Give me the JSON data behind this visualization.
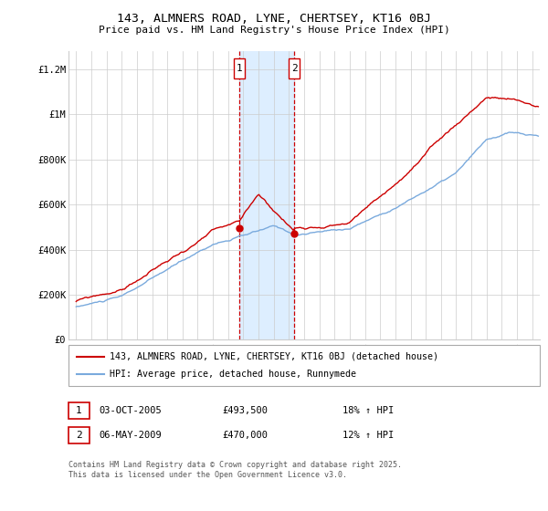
{
  "title": "143, ALMNERS ROAD, LYNE, CHERTSEY, KT16 0BJ",
  "subtitle": "Price paid vs. HM Land Registry's House Price Index (HPI)",
  "legend_label_red": "143, ALMNERS ROAD, LYNE, CHERTSEY, KT16 0BJ (detached house)",
  "legend_label_blue": "HPI: Average price, detached house, Runnymede",
  "footer": "Contains HM Land Registry data © Crown copyright and database right 2025.\nThis data is licensed under the Open Government Licence v3.0.",
  "annotation1": {
    "num": "1",
    "date": "03-OCT-2005",
    "price": "£493,500",
    "hpi": "18% ↑ HPI"
  },
  "annotation2": {
    "num": "2",
    "date": "06-MAY-2009",
    "price": "£470,000",
    "hpi": "12% ↑ HPI"
  },
  "sale1_x": 2005.75,
  "sale1_y": 493500,
  "sale2_x": 2009.35,
  "sale2_y": 470000,
  "vline1_x": 2005.75,
  "vline2_x": 2009.35,
  "ylim": [
    0,
    1280000
  ],
  "xlim_start": 1994.5,
  "xlim_end": 2025.5,
  "red_color": "#cc0000",
  "blue_color": "#7aaadd",
  "shade_color": "#ddeeff",
  "vline_color": "#cc0000",
  "grid_color": "#cccccc"
}
